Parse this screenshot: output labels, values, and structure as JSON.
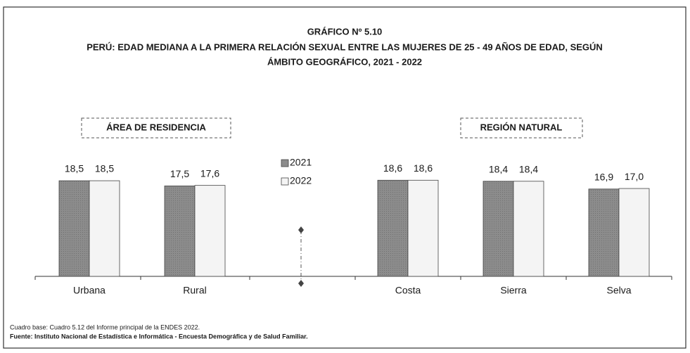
{
  "chart_data": {
    "type": "bar",
    "title": "GRÁFICO Nº 5.10",
    "subtitle_lines": [
      "PERÚ: EDAD MEDIANA A LA PRIMERA RELACIÓN SEXUAL ENTRE LAS MUJERES DE 25 - 49 AÑOS DE EDAD, SEGÚN",
      "ÁMBITO GEOGRÁFICO, 2021 - 2022"
    ],
    "annotations": [
      "ÁREA DE RESIDENCIA",
      "REGIÓN NATURAL"
    ],
    "categories": [
      "Urbana",
      "Rural",
      "Costa",
      "Sierra",
      "Selva"
    ],
    "series": [
      {
        "name": "2021",
        "color": "#8c8c8c",
        "values": [
          18.5,
          17.5,
          18.6,
          18.4,
          16.9
        ],
        "value_labels": [
          "18,5",
          "17,5",
          "18,6",
          "18,4",
          "16,9"
        ]
      },
      {
        "name": "2022",
        "color": "#f4f4f4",
        "values": [
          18.5,
          17.6,
          18.6,
          18.4,
          17.0
        ],
        "value_labels": [
          "18,5",
          "17,6",
          "18,6",
          "18,4",
          "17,0"
        ]
      }
    ],
    "ylim": [
      0,
      20
    ],
    "notes": [
      "Cuadro base: Cuadro 5.12 del Informe principal de la ENDES 2022.",
      "Fuente: Instituto Nacional de Estadística e Informática - Encuesta Demográfica y de Salud Familiar."
    ]
  }
}
